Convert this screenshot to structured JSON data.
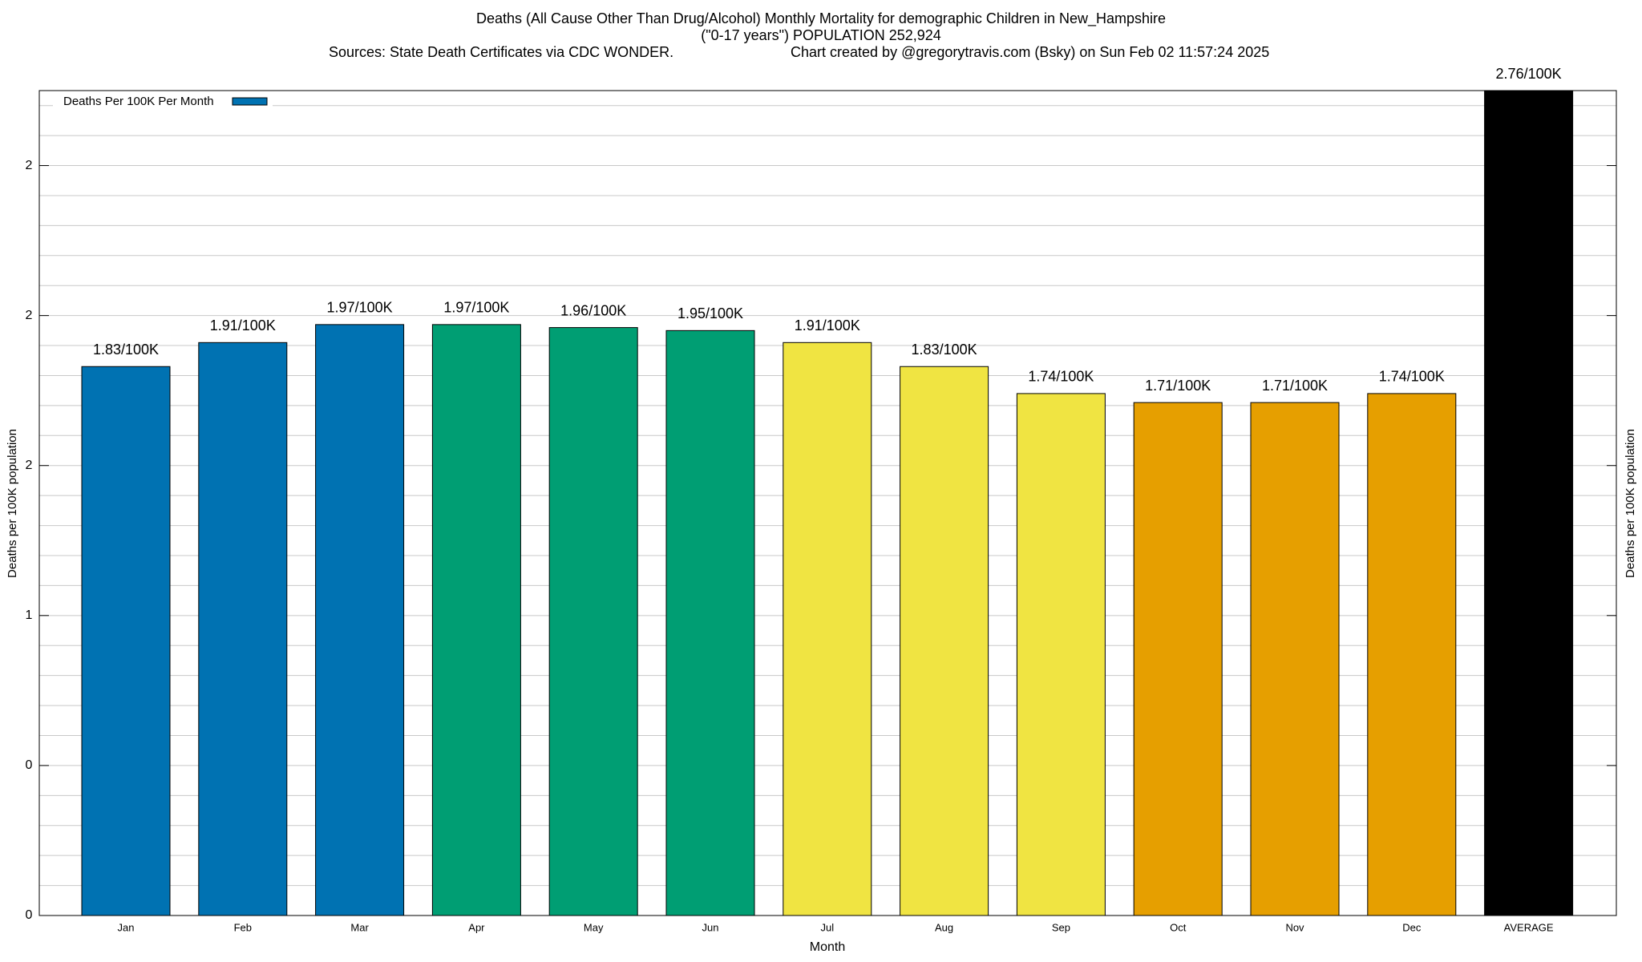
{
  "chart_data": {
    "type": "bar",
    "title": "Deaths (All Cause Other Than Drug/Alcohol) Monthly Mortality for demographic Children in New_Hampshire",
    "subtitle": "(\"0-17 years\") POPULATION 252,924",
    "source": "Sources: State Death Certificates via CDC WONDER.",
    "credit": "Chart created by @gregorytravis.com (Bsky) on Sun Feb 02 11:57:24 2025",
    "xlabel": "Month",
    "ylabel": "Deaths per 100K population",
    "y2label": "Deaths per 100K population",
    "categories": [
      "Jan",
      "Feb",
      "Mar",
      "Apr",
      "May",
      "Jun",
      "Jul",
      "Aug",
      "Sep",
      "Oct",
      "Nov",
      "Dec",
      "AVERAGE"
    ],
    "series": [
      {
        "name": "Deaths Per 100K Per Month",
        "colors": [
          "#0072b2",
          "#0072b2",
          "#0072b2",
          "#009e73",
          "#009e73",
          "#009e73",
          "#f0e442",
          "#f0e442",
          "#f0e442",
          "#e69f00",
          "#e69f00",
          "#e69f00",
          "#000000"
        ],
        "values": [
          1.83,
          1.91,
          1.97,
          1.97,
          1.96,
          1.95,
          1.91,
          1.83,
          1.74,
          1.71,
          1.71,
          1.74,
          2.76
        ],
        "value_labels": [
          "1.83/100K",
          "1.91/100K",
          "1.97/100K",
          "1.97/100K",
          "1.96/100K",
          "1.95/100K",
          "1.91/100K",
          "1.83/100K",
          "1.74/100K",
          "1.71/100K",
          "1.71/100K",
          "1.74/100K",
          "2.76/100K"
        ]
      }
    ],
    "ylim": [
      0,
      2.75
    ],
    "yticks": [
      0,
      {
        "value": 0.5,
        "label": "0"
      },
      1,
      {
        "value": 1.5,
        "label": "2"
      },
      2,
      {
        "value": 2.5,
        "label": "2"
      }
    ],
    "minor_grid": [
      0.1,
      0.2,
      0.3,
      0.4,
      0.6,
      0.7,
      0.8,
      0.9,
      1.1,
      1.2,
      1.3,
      1.4,
      1.6,
      1.7,
      1.8,
      1.9,
      2.1,
      2.2,
      2.3,
      2.4,
      2.6,
      2.7
    ],
    "grid": true,
    "legend": "upper left"
  }
}
